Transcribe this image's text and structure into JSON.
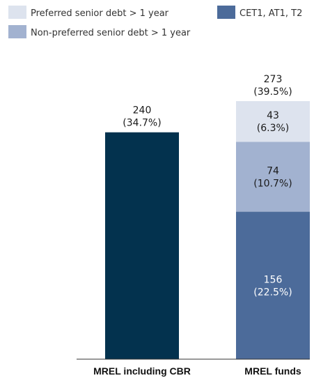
{
  "chart_data": {
    "type": "bar",
    "stacked": true,
    "categories": [
      "MREL including CBR",
      "MREL funds"
    ],
    "legend": [
      {
        "label": "Preferred senior debt > 1 year",
        "color": "#dde3ee"
      },
      {
        "label": "CET1, AT1, T2",
        "color": "#4c6b9a"
      },
      {
        "label": "Non-preferred senior debt > 1 year",
        "color": "#a2b2d0"
      }
    ],
    "series": [
      {
        "id": "mrel-cbr",
        "color": "#03324e",
        "values": [
          240,
          null
        ],
        "pct": [
          "(34.7%)",
          null
        ]
      },
      {
        "id": "cet1",
        "name": "CET1, AT1, T2",
        "color": "#4c6b9a",
        "values": [
          null,
          156
        ],
        "pct": [
          null,
          "(22.5%)"
        ]
      },
      {
        "id": "nonpref",
        "name": "Non-preferred senior debt > 1 year",
        "color": "#a2b2d0",
        "values": [
          null,
          74
        ],
        "pct": [
          null,
          "(10.7%)"
        ]
      },
      {
        "id": "pref",
        "name": "Preferred senior debt > 1 year",
        "color": "#dde3ee",
        "values": [
          null,
          43
        ],
        "pct": [
          null,
          "(6.3%)"
        ]
      }
    ],
    "totals": [
      {
        "category": "MREL including CBR",
        "value": "240",
        "pct": "(34.7%)"
      },
      {
        "category": "MREL funds",
        "value": "273",
        "pct": "(39.5%)"
      }
    ],
    "ylim": [
      0,
      273
    ],
    "grid": false,
    "legend_position": "top"
  }
}
